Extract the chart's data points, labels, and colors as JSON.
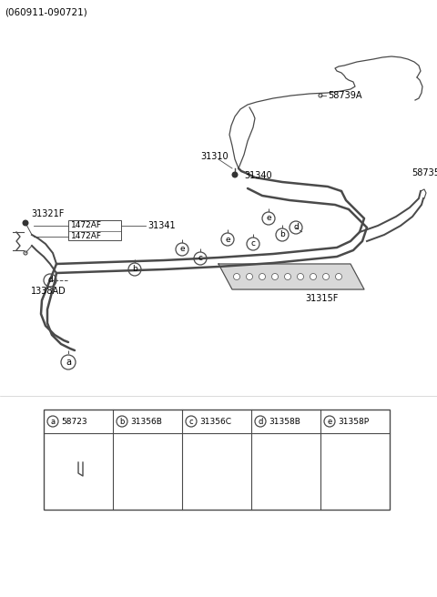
{
  "title_code": "(060911-090721)",
  "bg_color": "#ffffff",
  "line_color": "#4a4a4a",
  "text_color": "#000000",
  "lw_main": 1.8,
  "lw_thin": 1.0,
  "lw_brake": 0.9,
  "col_items": [
    [
      "a",
      "58723"
    ],
    [
      "b",
      "31356B"
    ],
    [
      "c",
      "31356C"
    ],
    [
      "d",
      "31358B"
    ],
    [
      "e",
      "31358P"
    ]
  ]
}
